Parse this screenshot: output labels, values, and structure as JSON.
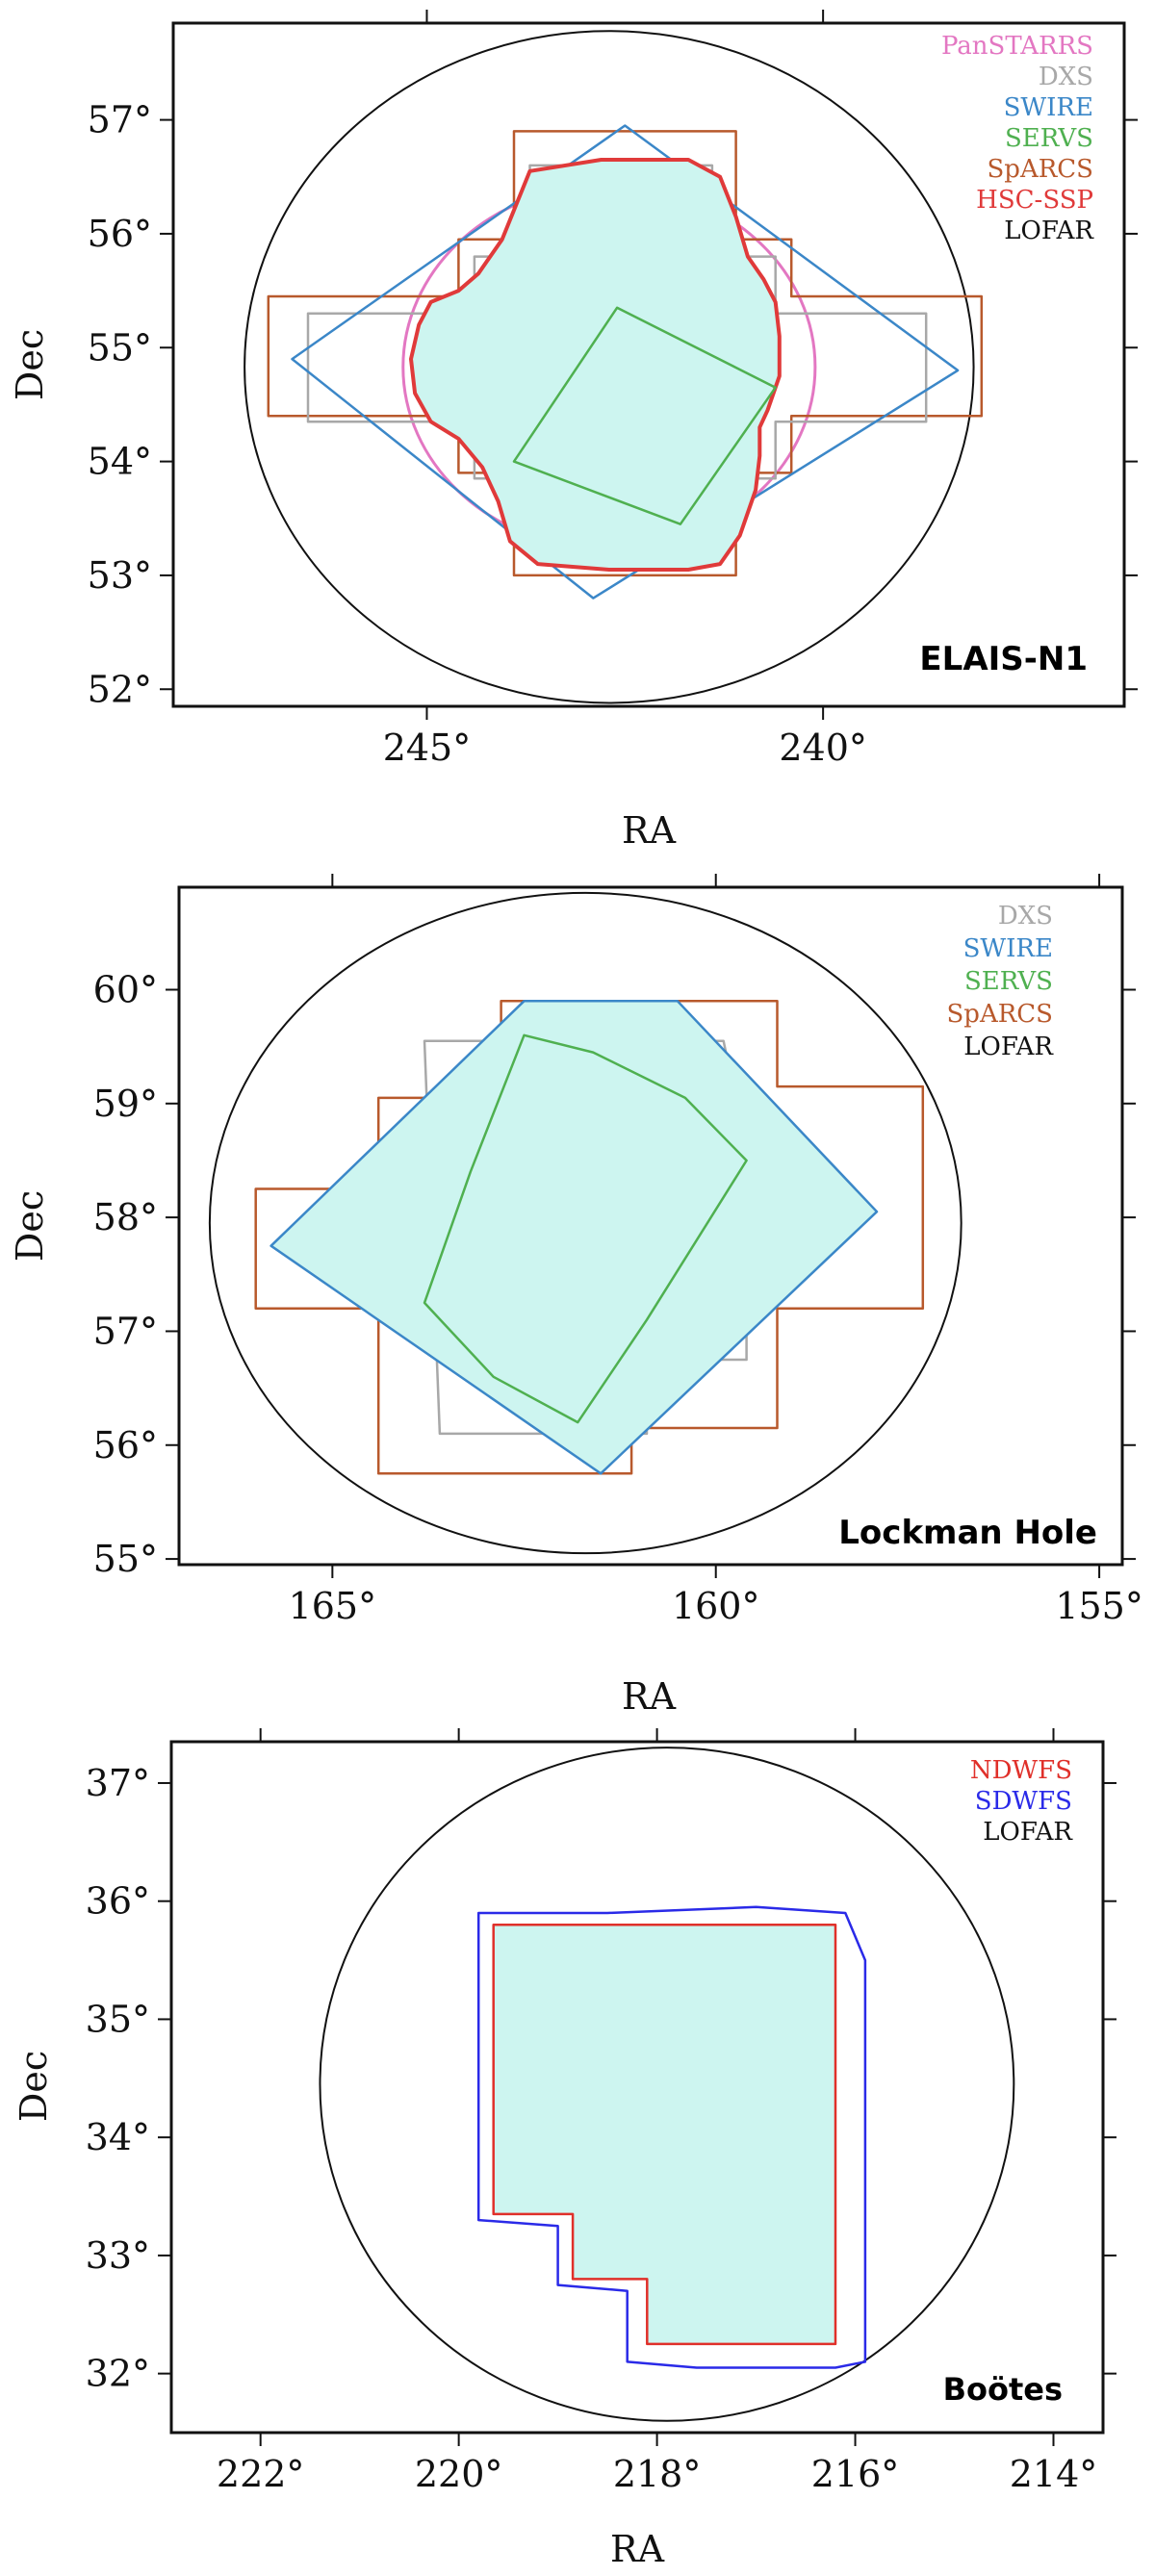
{
  "figure_title": "",
  "colors": {
    "fill": "#cdf5f0",
    "panstarrs": "#e377c2",
    "dxs": "#a8a8a8",
    "swire": "#3b87c8",
    "servs": "#4fb050",
    "sparcs": "#b8592c",
    "hsc": "#e03a3a",
    "lofar": "#111111",
    "ndwfs": "#e0302a",
    "sdwfs": "#2a2ae8"
  },
  "chart_data": [
    {
      "type": "line",
      "field": "ELAIS-N1",
      "xlabel": "RA",
      "ylabel": "Dec",
      "xlim": [
        248.2,
        236.2
      ],
      "ylim": [
        51.85,
        57.85
      ],
      "x_ticks": [
        245,
        240
      ],
      "x_tick_labels": [
        "245°",
        "240°"
      ],
      "y_ticks": [
        52,
        53,
        54,
        55,
        56,
        57
      ],
      "y_tick_labels": [
        "52°",
        "53°",
        "54°",
        "55°",
        "56°",
        "57°"
      ],
      "legend": [
        "PanSTARRS",
        "DXS",
        "SWIRE",
        "SERVS",
        "SpARCS",
        "HSC-SSP",
        "LOFAR"
      ],
      "series": [
        {
          "name": "LOFAR",
          "shape": "ellipse",
          "center": [
            242.7,
            54.83
          ],
          "radius_x": 4.6,
          "radius_y": 2.95
        },
        {
          "name": "PanSTARRS",
          "shape": "ellipse",
          "center": [
            242.7,
            54.83
          ],
          "radius_x": 2.6,
          "radius_y": 1.6
        },
        {
          "name": "SpARCS",
          "x": [
            247.0,
            244.6,
            244.6,
            243.9,
            243.9,
            241.1,
            241.1,
            240.4,
            240.4,
            238.0,
            238.0,
            240.4,
            240.4,
            241.1,
            241.1,
            243.9,
            243.9,
            244.6,
            244.6,
            247.0
          ],
          "y": [
            55.45,
            55.45,
            55.95,
            55.95,
            56.9,
            56.9,
            55.95,
            55.95,
            55.45,
            55.45,
            54.4,
            54.4,
            53.9,
            53.9,
            53.0,
            53.0,
            53.9,
            53.9,
            54.4,
            54.4
          ]
        },
        {
          "name": "DXS",
          "x": [
            246.5,
            244.4,
            244.4,
            243.7,
            243.7,
            241.4,
            241.4,
            240.6,
            240.6,
            238.7,
            238.7,
            240.6,
            240.6,
            241.4,
            241.4,
            243.7,
            243.7,
            244.4,
            244.4,
            246.5
          ],
          "y": [
            55.3,
            55.3,
            55.8,
            55.8,
            56.6,
            56.6,
            55.8,
            55.8,
            55.3,
            55.3,
            54.35,
            54.35,
            53.85,
            53.85,
            53.2,
            53.2,
            53.85,
            53.85,
            54.35,
            54.35
          ]
        },
        {
          "name": "SWIRE",
          "x": [
            246.7,
            242.5,
            238.3,
            242.9
          ],
          "y": [
            54.9,
            56.95,
            54.8,
            52.8
          ]
        },
        {
          "name": "HSC-SSP",
          "x": [
            244.95,
            244.6,
            244.35,
            244.05,
            243.7,
            242.8,
            241.7,
            241.3,
            241.1,
            240.95,
            240.75,
            240.6,
            240.55,
            240.55,
            240.7,
            240.8,
            240.8,
            240.85,
            241.05,
            241.3,
            241.7,
            242.7,
            243.6,
            243.95,
            244.1,
            244.3,
            244.6,
            244.95,
            245.15,
            245.2,
            245.1,
            244.95
          ],
          "y": [
            55.4,
            55.5,
            55.65,
            55.95,
            56.55,
            56.65,
            56.65,
            56.5,
            56.15,
            55.8,
            55.6,
            55.4,
            55.1,
            54.75,
            54.45,
            54.3,
            54.05,
            53.75,
            53.35,
            53.1,
            53.05,
            53.05,
            53.1,
            53.3,
            53.65,
            53.95,
            54.2,
            54.35,
            54.6,
            54.9,
            55.2,
            55.4
          ]
        },
        {
          "name": "SERVS",
          "x": [
            242.6,
            240.6,
            241.8,
            243.9
          ],
          "y": [
            55.35,
            54.65,
            53.45,
            54.0
          ]
        }
      ]
    },
    {
      "type": "line",
      "field": "Lockman Hole",
      "xlabel": "RA",
      "ylabel": "Dec",
      "xlim": [
        167.0,
        154.7
      ],
      "ylim": [
        54.95,
        60.9
      ],
      "x_ticks": [
        165,
        160,
        155
      ],
      "x_tick_labels": [
        "165°",
        "160°",
        "155°"
      ],
      "y_ticks": [
        55,
        56,
        57,
        58,
        59,
        60
      ],
      "y_tick_labels": [
        "55°",
        "56°",
        "57°",
        "58°",
        "59°",
        "60°"
      ],
      "legend": [
        "DXS",
        "SWIRE",
        "SERVS",
        "SpARCS",
        "LOFAR"
      ],
      "series": [
        {
          "name": "LOFAR",
          "shape": "ellipse",
          "center": [
            161.7,
            57.95
          ],
          "radius_x": 4.9,
          "radius_y": 2.9
        },
        {
          "name": "SpARCS",
          "x": [
            166.0,
            164.4,
            164.4,
            162.8,
            162.8,
            159.2,
            159.2,
            157.3,
            157.3,
            159.2,
            159.2,
            161.1,
            161.1,
            164.4,
            164.4,
            166.0
          ],
          "y": [
            58.25,
            58.25,
            59.05,
            59.05,
            59.9,
            59.9,
            59.15,
            59.15,
            57.2,
            57.2,
            56.15,
            56.15,
            55.75,
            55.75,
            57.2,
            57.2
          ]
        },
        {
          "name": "DXS",
          "x": [
            163.8,
            159.9,
            159.6,
            159.6,
            160.9,
            160.9,
            163.6
          ],
          "y": [
            59.55,
            59.55,
            58.6,
            56.75,
            56.75,
            56.1,
            56.1
          ]
        },
        {
          "name": "SWIRE",
          "x": [
            165.8,
            162.5,
            160.5,
            157.9,
            161.5
          ],
          "y": [
            57.75,
            59.9,
            59.9,
            58.05,
            55.75
          ]
        },
        {
          "name": "SERVS",
          "x": [
            162.5,
            161.6,
            160.4,
            159.6,
            160.9,
            161.8,
            162.9,
            163.8,
            163.2
          ],
          "y": [
            59.6,
            59.45,
            59.05,
            58.5,
            57.1,
            56.2,
            56.6,
            57.25,
            58.4
          ]
        }
      ]
    },
    {
      "type": "line",
      "field": "Boötes",
      "xlabel": "RA",
      "ylabel": "Dec",
      "xlim": [
        222.9,
        213.5
      ],
      "ylim": [
        31.5,
        37.35
      ],
      "x_ticks": [
        222,
        220,
        218,
        216,
        214
      ],
      "x_tick_labels": [
        "222°",
        "220°",
        "218°",
        "216°",
        "214°"
      ],
      "y_ticks": [
        32,
        33,
        34,
        35,
        36,
        37
      ],
      "y_tick_labels": [
        "32°",
        "33°",
        "34°",
        "35°",
        "36°",
        "37°"
      ],
      "legend": [
        "NDWFS",
        "SDWFS",
        "LOFAR"
      ],
      "series": [
        {
          "name": "LOFAR",
          "shape": "ellipse",
          "center": [
            217.9,
            34.45
          ],
          "radius_x": 3.5,
          "radius_y": 2.85
        },
        {
          "name": "SDWFS",
          "x": [
            219.8,
            218.5,
            217.0,
            216.1,
            215.9,
            215.9,
            216.2,
            217.6,
            218.3,
            218.3,
            219.0,
            219.0,
            219.8,
            219.8
          ],
          "y": [
            35.9,
            35.9,
            35.95,
            35.9,
            35.5,
            32.1,
            32.05,
            32.05,
            32.1,
            32.7,
            32.75,
            33.25,
            33.3,
            35.9
          ]
        },
        {
          "name": "NDWFS",
          "x": [
            219.65,
            216.2,
            216.2,
            218.1,
            218.1,
            218.85,
            218.85,
            219.65,
            219.65
          ],
          "y": [
            35.8,
            35.8,
            32.25,
            32.25,
            32.8,
            32.8,
            33.35,
            33.35,
            35.8
          ]
        }
      ]
    }
  ]
}
